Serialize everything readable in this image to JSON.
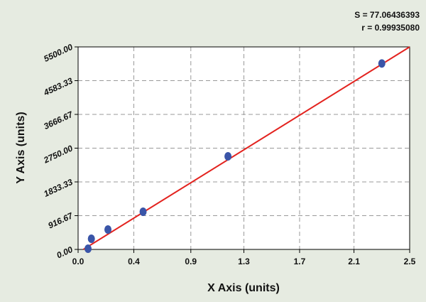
{
  "chart_data": {
    "type": "scatter",
    "x_label": "X Axis (units)",
    "y_label": "Y Axis (units)",
    "annotations": [
      "S = 77.06436393",
      "r = 0.99935080"
    ],
    "points": {
      "x": [
        0.075,
        0.1,
        0.225,
        0.49,
        1.13,
        2.29
      ],
      "y": [
        20,
        290,
        540,
        1023,
        2528,
        5050
      ],
      "color": "#3a55a8"
    },
    "fit": {
      "x": [
        0.04,
        2.5
      ],
      "y": [
        0,
        5500
      ],
      "color": "#e3231f"
    },
    "xlim": [
      0,
      2.5
    ],
    "ylim": [
      0,
      5500
    ],
    "xticks": [
      {
        "value": 0,
        "label": "0.0"
      },
      {
        "value": 0.42,
        "label": "0.4"
      },
      {
        "value": 0.85,
        "label": "0.9"
      },
      {
        "value": 1.25,
        "label": "1.3"
      },
      {
        "value": 1.67,
        "label": "1.7"
      },
      {
        "value": 2.08,
        "label": "2.1"
      },
      2.5
    ],
    "yticks": [
      {
        "value": 0,
        "label": "0.00"
      },
      {
        "value": 916.67,
        "label": "916.67"
      },
      {
        "value": 1833.33,
        "label": "1833.33"
      },
      {
        "value": 2750,
        "label": "2750.00"
      },
      {
        "value": 3666.67,
        "label": "3666.67"
      },
      {
        "value": 4583.33,
        "label": "4583.33"
      },
      {
        "value": 5500,
        "label": "5500.00"
      }
    ],
    "grid": true
  }
}
